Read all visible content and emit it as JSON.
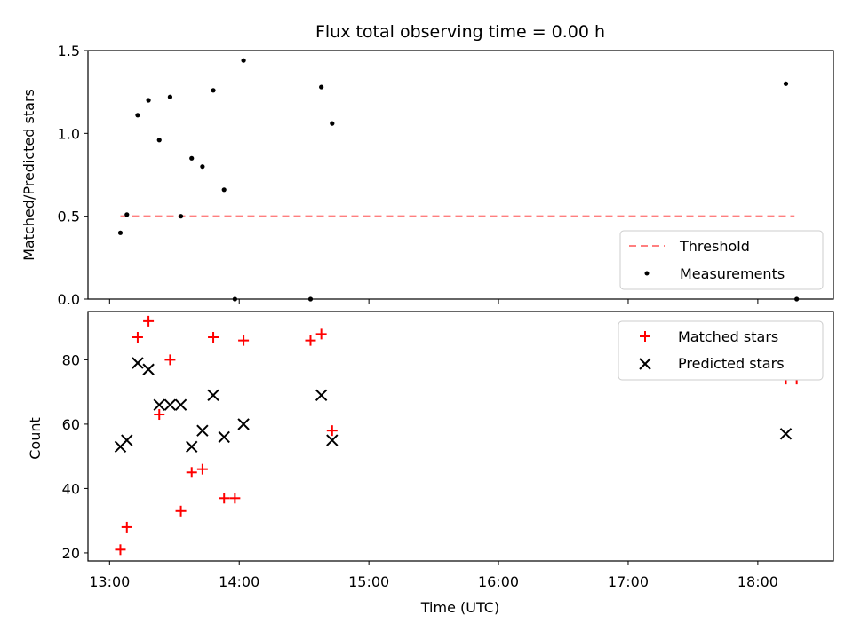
{
  "chart_data": {
    "type": "scatter",
    "title": "Flux total observing time = 0.00 h",
    "xlabel": "Time (UTC)",
    "x_ticks": [
      "13:00",
      "14:00",
      "15:00",
      "16:00",
      "17:00",
      "18:00"
    ],
    "x_range": [
      "12:50",
      "18:35"
    ],
    "colors": {
      "threshold": "#ff7f7f",
      "measurements": "#000000",
      "matched": "#ff0000",
      "predicted": "#000000"
    },
    "panels": [
      {
        "ylabel": "Matched/Predicted stars",
        "ylim": [
          0.0,
          1.5
        ],
        "yticks": [
          "0.0",
          "0.5",
          "1.0",
          "1.5"
        ],
        "legend_position": "lower right",
        "series": [
          {
            "name": "Threshold",
            "kind": "dashed-line",
            "points": [
              {
                "x": "13:05",
                "y": 0.5
              },
              {
                "x": "18:17",
                "y": 0.5
              }
            ]
          },
          {
            "name": "Measurements",
            "kind": "dot",
            "points": [
              {
                "x": "13:05",
                "y": 0.4
              },
              {
                "x": "13:08",
                "y": 0.51
              },
              {
                "x": "13:13",
                "y": 1.11
              },
              {
                "x": "13:18",
                "y": 1.2
              },
              {
                "x": "13:23",
                "y": 0.96
              },
              {
                "x": "13:28",
                "y": 1.22
              },
              {
                "x": "13:33",
                "y": 0.5
              },
              {
                "x": "13:38",
                "y": 0.85
              },
              {
                "x": "13:43",
                "y": 0.8
              },
              {
                "x": "13:48",
                "y": 1.26
              },
              {
                "x": "13:53",
                "y": 0.66
              },
              {
                "x": "13:58",
                "y": 0.0
              },
              {
                "x": "14:02",
                "y": 1.44
              },
              {
                "x": "14:33",
                "y": 0.0
              },
              {
                "x": "14:38",
                "y": 1.28
              },
              {
                "x": "14:43",
                "y": 1.06
              },
              {
                "x": "18:13",
                "y": 1.3
              },
              {
                "x": "18:18",
                "y": 0.0
              }
            ]
          }
        ]
      },
      {
        "ylabel": "Count",
        "ylim": [
          17.5,
          95
        ],
        "yticks": [
          "20",
          "40",
          "60",
          "80"
        ],
        "legend_position": "upper right",
        "series": [
          {
            "name": "Matched stars",
            "kind": "plus",
            "points": [
              {
                "x": "13:05",
                "y": 21
              },
              {
                "x": "13:08",
                "y": 28
              },
              {
                "x": "13:13",
                "y": 87
              },
              {
                "x": "13:18",
                "y": 92
              },
              {
                "x": "13:23",
                "y": 63
              },
              {
                "x": "13:28",
                "y": 80
              },
              {
                "x": "13:33",
                "y": 33
              },
              {
                "x": "13:38",
                "y": 45
              },
              {
                "x": "13:43",
                "y": 46
              },
              {
                "x": "13:48",
                "y": 87
              },
              {
                "x": "13:53",
                "y": 37
              },
              {
                "x": "13:58",
                "y": 37
              },
              {
                "x": "14:02",
                "y": 86
              },
              {
                "x": "14:33",
                "y": 86
              },
              {
                "x": "14:38",
                "y": 88
              },
              {
                "x": "14:43",
                "y": 58
              },
              {
                "x": "18:13",
                "y": 74
              },
              {
                "x": "18:18",
                "y": 74
              }
            ]
          },
          {
            "name": "Predicted stars",
            "kind": "cross",
            "points": [
              {
                "x": "13:05",
                "y": 53
              },
              {
                "x": "13:08",
                "y": 55
              },
              {
                "x": "13:13",
                "y": 79
              },
              {
                "x": "13:18",
                "y": 77
              },
              {
                "x": "13:23",
                "y": 66
              },
              {
                "x": "13:28",
                "y": 66
              },
              {
                "x": "13:33",
                "y": 66
              },
              {
                "x": "13:38",
                "y": 53
              },
              {
                "x": "13:43",
                "y": 58
              },
              {
                "x": "13:48",
                "y": 69
              },
              {
                "x": "13:53",
                "y": 56
              },
              {
                "x": "14:02",
                "y": 60
              },
              {
                "x": "14:38",
                "y": 69
              },
              {
                "x": "14:43",
                "y": 55
              },
              {
                "x": "18:13",
                "y": 57
              }
            ]
          }
        ]
      }
    ]
  }
}
